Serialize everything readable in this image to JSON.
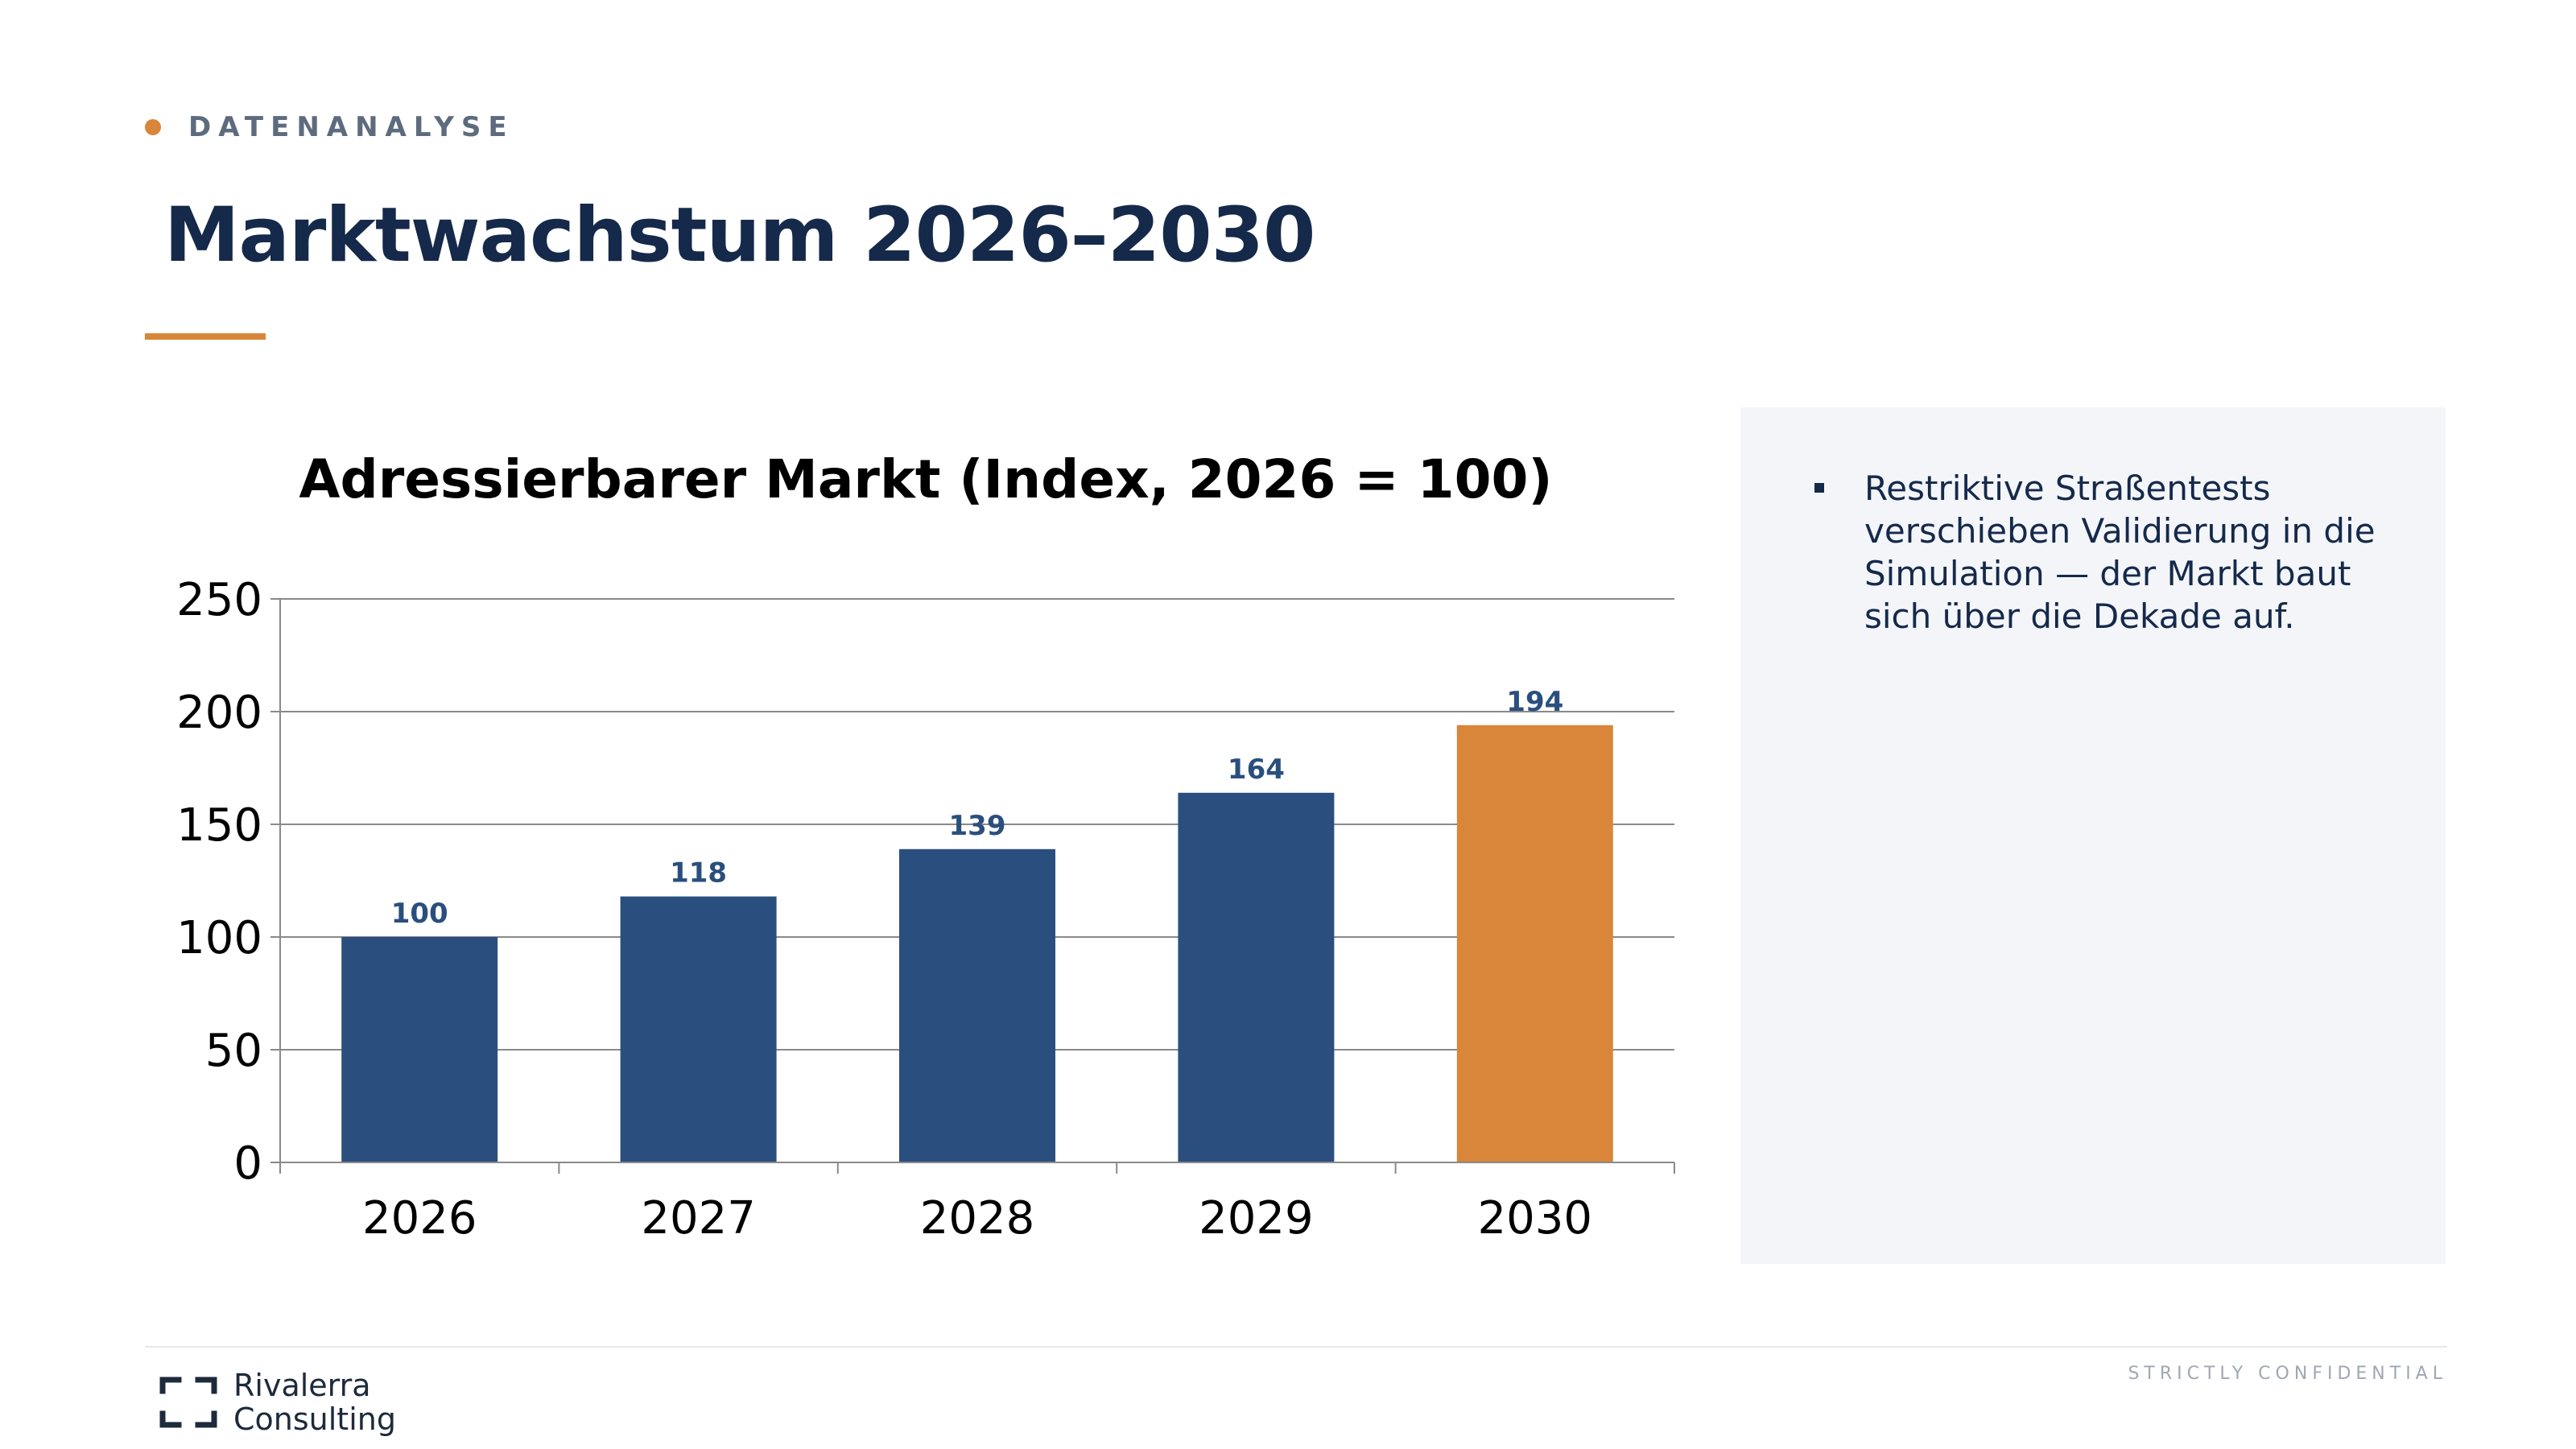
{
  "header": {
    "section_label": "DATENANALYSE",
    "title": "Marktwachstum 2026–2030"
  },
  "colors": {
    "accent": "#d9863a",
    "primary": "#2a4f7e",
    "navy": "#15294a",
    "panel_bg": "#f3f5f9"
  },
  "chart_data": {
    "type": "bar",
    "title": "Adressierbarer Markt (Index, 2026 = 100)",
    "xlabel": "",
    "ylabel": "",
    "categories": [
      "2026",
      "2027",
      "2028",
      "2029",
      "2030"
    ],
    "values": [
      100,
      118,
      139,
      164,
      194
    ],
    "data_labels": [
      "100",
      "118",
      "139",
      "164",
      "194"
    ],
    "highlight_index": 4,
    "bar_colors": [
      "#2a4f7e",
      "#2a4f7e",
      "#2a4f7e",
      "#2a4f7e",
      "#d9863a"
    ],
    "ylim": [
      0,
      250
    ],
    "yticks": [
      "0",
      "50",
      "100",
      "150",
      "200",
      "250"
    ],
    "grid": true,
    "legend": "none"
  },
  "insights": {
    "items": [
      "Restriktive Straßentests verschieben Validierung in die Simulation — der Markt baut sich über die Dekade auf."
    ]
  },
  "footer": {
    "confidential": "STRICTLY CONFIDENTIAL",
    "logo_line1": "Rivalerra",
    "logo_line2": "Consulting",
    "logo_icon": "bracket-frame-icon"
  }
}
